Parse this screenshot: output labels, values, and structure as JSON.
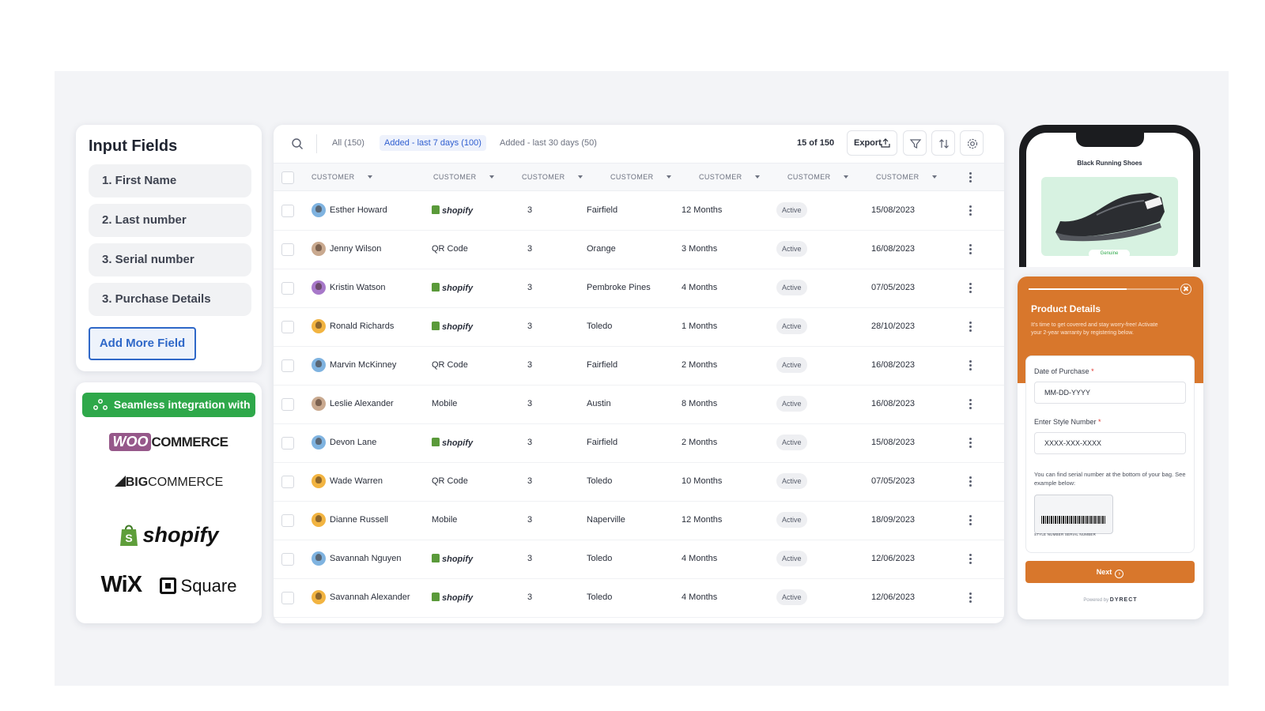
{
  "input_fields": {
    "title": "Input Fields",
    "fields": [
      "1. First Name",
      "2. Last number",
      "3. Serial number",
      "3. Purchase Details"
    ],
    "add_button": "Add More Field"
  },
  "integrations": {
    "banner": "Seamless integration with",
    "logos": {
      "woo_a": "WOO",
      "woo_b": "COMMERCE",
      "big_a": "BIG",
      "big_b": "COMMERCE",
      "shopify": "shopify",
      "wix": "WiX",
      "square": "Square"
    }
  },
  "table": {
    "tabs": [
      "All (150)",
      "Added - last 7 days (100)",
      "Added - last 30 days (50)"
    ],
    "active_tab": 1,
    "page_count": "15 of 150",
    "export_label": "Export",
    "columns": [
      "CUSTOMER",
      "CUSTOMER",
      "CUSTOMER",
      "CUSTOMER",
      "CUSTOMER",
      "CUSTOMER",
      "CUSTOMER"
    ],
    "rows": [
      {
        "name": "Esther Howard",
        "source": "shopify",
        "count": "3",
        "city": "Fairfield",
        "duration": "12 Months",
        "status": "Active",
        "date": "15/08/2023",
        "avatar": "#7fb3e0"
      },
      {
        "name": "Jenny Wilson",
        "source": "QR  Code",
        "count": "3",
        "city": "Orange",
        "duration": "3 Months",
        "status": "Active",
        "date": "16/08/2023",
        "avatar": "#c9a98f"
      },
      {
        "name": "Kristin Watson",
        "source": "shopify",
        "count": "3",
        "city": "Pembroke Pines",
        "duration": "4 Months",
        "status": "Active",
        "date": "07/05/2023",
        "avatar": "#a778c9"
      },
      {
        "name": "Ronald Richards",
        "source": "shopify",
        "count": "3",
        "city": "Toledo",
        "duration": "1 Months",
        "status": "Active",
        "date": "28/10/2023",
        "avatar": "#f2b441"
      },
      {
        "name": "Marvin McKinney",
        "source": "QR Code",
        "count": "3",
        "city": "Fairfield",
        "duration": "2 Months",
        "status": "Active",
        "date": "16/08/2023",
        "avatar": "#7fb3e0"
      },
      {
        "name": "Leslie Alexander",
        "source": "Mobile",
        "count": "3",
        "city": "Austin",
        "duration": "8 Months",
        "status": "Active",
        "date": "16/08/2023",
        "avatar": "#c9a98f"
      },
      {
        "name": "Devon Lane",
        "source": "shopify",
        "count": "3",
        "city": "Fairfield",
        "duration": "2 Months",
        "status": "Active",
        "date": "15/08/2023",
        "avatar": "#7fb3e0"
      },
      {
        "name": "Wade Warren",
        "source": "QR Code",
        "count": "3",
        "city": "Toledo",
        "duration": "10 Months",
        "status": "Active",
        "date": "07/05/2023",
        "avatar": "#f2b441"
      },
      {
        "name": "Dianne Russell",
        "source": "Mobile",
        "count": "3",
        "city": "Naperville",
        "duration": "12 Months",
        "status": "Active",
        "date": "18/09/2023",
        "avatar": "#f2b441"
      },
      {
        "name": "Savannah Nguyen",
        "source": "shopify",
        "count": "3",
        "city": "Toledo",
        "duration": "4 Months",
        "status": "Active",
        "date": "12/06/2023",
        "avatar": "#7fb3e0"
      },
      {
        "name": "Savannah Alexander",
        "source": "shopify",
        "count": "3",
        "city": "Toledo",
        "duration": "4 Months",
        "status": "Active",
        "date": "12/06/2023",
        "avatar": "#f2b441"
      }
    ]
  },
  "phone": {
    "product_title": "Black Running Shoes",
    "badge": "Genuine"
  },
  "form": {
    "title": "Product Details",
    "description": "It's time to get covered and stay worry-free! Activate your 2-year warranty by registering below.",
    "progress": 0.65,
    "date_label": "Date of Purchase",
    "date_value": "MM-DD-YYYY",
    "style_label": "Enter Style Number",
    "style_value": "XXXX-XXX-XXXX",
    "hint": "You can find serial number at the bottom of your bag. See example below:",
    "tag_labels": "STYLE NUMBER      SERIAL NUMBER",
    "required_mark": "*",
    "next_label": "Next",
    "powered_prefix": "Powered by",
    "powered_brand": "DYRECT"
  },
  "colors": {
    "accent_blue": "#2f68c8",
    "integration_green": "#2ea84a",
    "form_orange": "#d8772c",
    "woo_purple": "#96588a"
  }
}
